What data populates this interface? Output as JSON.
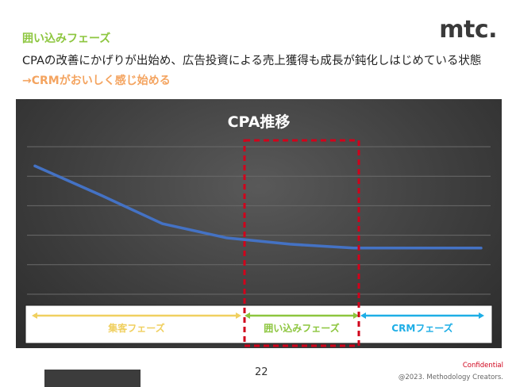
{
  "header": {
    "phase_title": "囲い込みフェーズ",
    "logo": "mtc.",
    "description": "CPAの改善にかげりが出始め、広告投資による売上獲得も成長が鈍化しはじめている状態",
    "conclusion": "→CRMがおいしく感じ始める"
  },
  "chart_data": {
    "type": "line",
    "title": "CPA推移",
    "x": [
      0,
      1,
      2,
      3,
      4,
      5,
      6,
      7
    ],
    "series": [
      {
        "values": [
          100,
          78,
          55,
          44,
          39,
          36,
          36,
          36
        ]
      }
    ],
    "ylim": [
      0,
      115
    ],
    "grid": true,
    "line_color": "#4472c4",
    "phases": [
      {
        "label": "集客フェーズ",
        "color": "#f0d060"
      },
      {
        "label": "囲い込みフェーズ",
        "color": "#8dc63f"
      },
      {
        "label": "CRMフェーズ",
        "color": "#1eaee6"
      }
    ],
    "highlight_phase": "囲い込みフェーズ",
    "highlight_color": "#d0021b"
  },
  "footer": {
    "page_number": "22",
    "confidential": "Confidential",
    "copyright": "@2023.  Methodology Creators."
  }
}
